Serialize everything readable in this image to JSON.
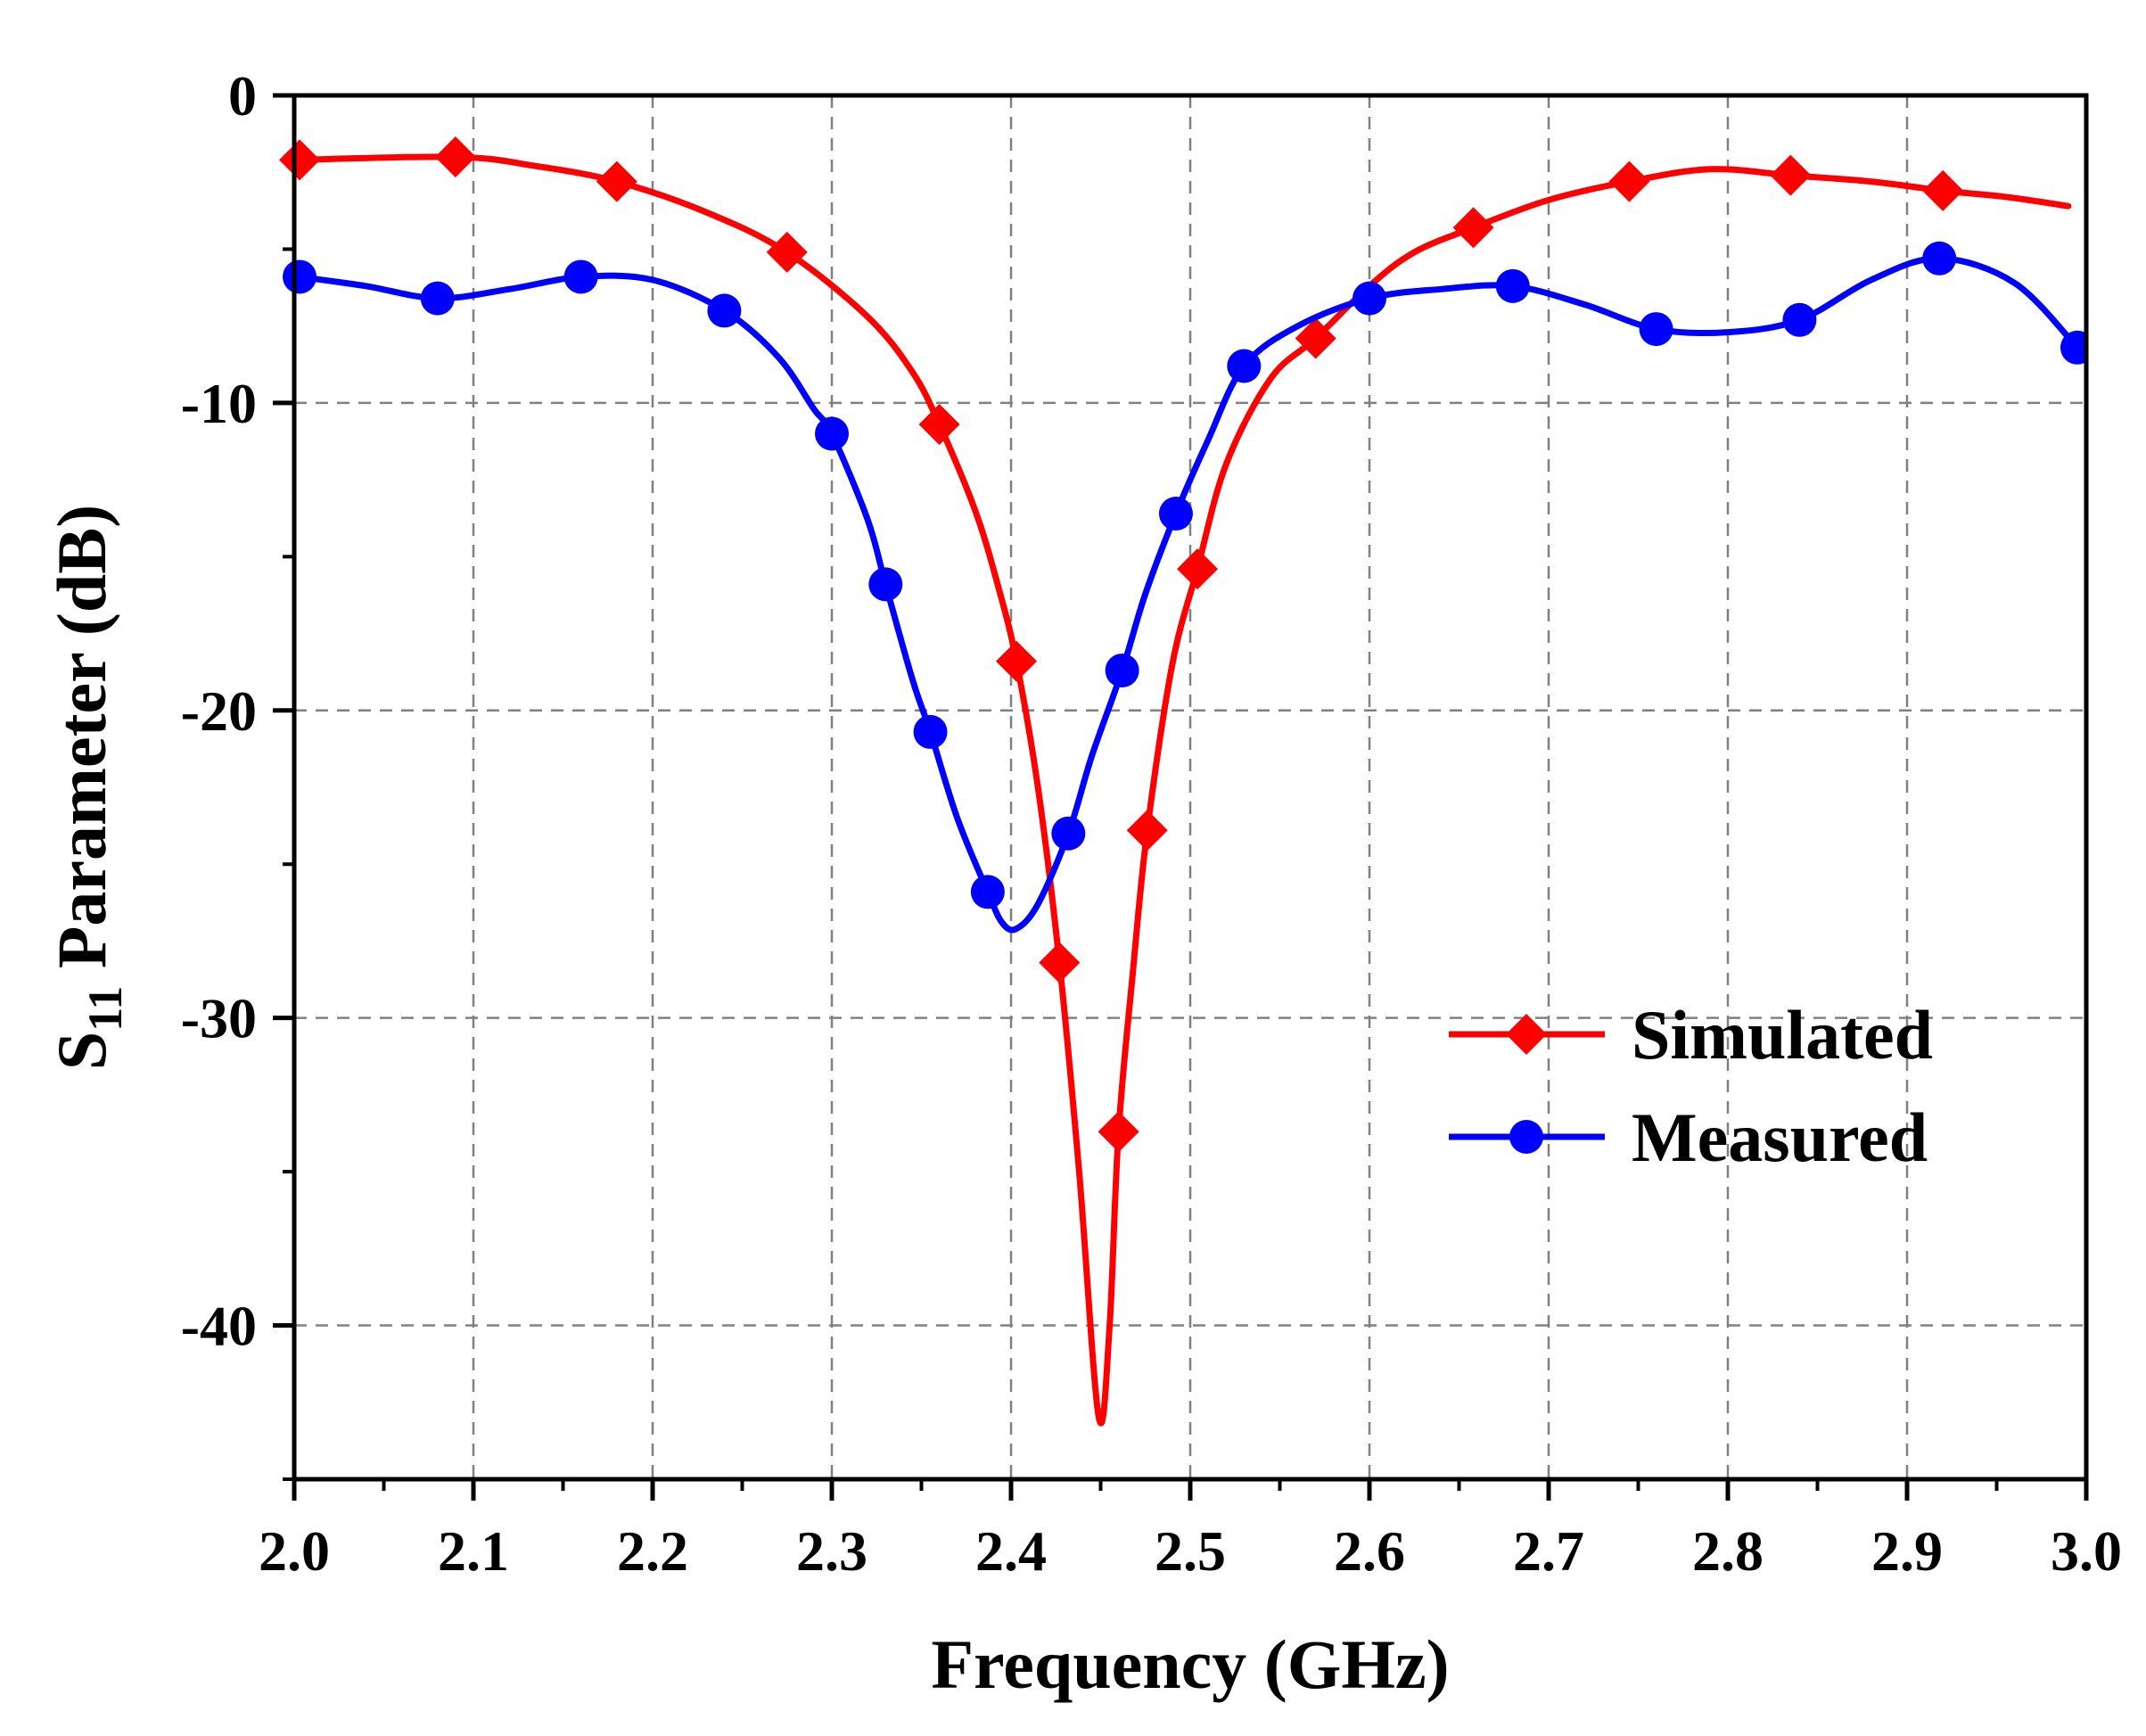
{
  "chart_data": {
    "type": "line",
    "title": "",
    "xlabel": "Frequency (GHz)",
    "ylabel": {
      "main": "S",
      "subscript": "11",
      "rest": " Parameter (dB)"
    },
    "xlim": [
      2.0,
      3.0
    ],
    "ylim": [
      -45,
      0
    ],
    "x_ticks": [
      2.0,
      2.1,
      2.2,
      2.3,
      2.4,
      2.5,
      2.6,
      2.7,
      2.8,
      2.9,
      3.0
    ],
    "x_tick_labels": [
      "2.0",
      "2.1",
      "2.2",
      "2.3",
      "2.4",
      "2.5",
      "2.6",
      "2.7",
      "2.8",
      "2.9",
      "3.0"
    ],
    "y_ticks": [
      0,
      -10,
      -20,
      -30,
      -40
    ],
    "y_tick_labels": [
      "0",
      "-10",
      "-20",
      "-30",
      "-40"
    ],
    "grid": true,
    "legend_position": "lower-right",
    "series": [
      {
        "name": "Simulated",
        "color": "#ff0000",
        "marker": "diamond",
        "curve": [
          [
            2.0,
            -2.1
          ],
          [
            2.09,
            -2.0
          ],
          [
            2.135,
            -2.3
          ],
          [
            2.18,
            -2.8
          ],
          [
            2.23,
            -3.8
          ],
          [
            2.275,
            -5.1
          ],
          [
            2.32,
            -7.2
          ],
          [
            2.345,
            -9.0
          ],
          [
            2.36,
            -10.7
          ],
          [
            2.38,
            -13.5
          ],
          [
            2.393,
            -16.0
          ],
          [
            2.403,
            -18.4
          ],
          [
            2.415,
            -22.5
          ],
          [
            2.427,
            -28.2
          ],
          [
            2.438,
            -35.0
          ],
          [
            2.449,
            -43.0
          ],
          [
            2.455,
            -40.0
          ],
          [
            2.46,
            -33.7
          ],
          [
            2.468,
            -28.5
          ],
          [
            2.476,
            -23.9
          ],
          [
            2.49,
            -18.5
          ],
          [
            2.504,
            -15.4
          ],
          [
            2.52,
            -12.0
          ],
          [
            2.545,
            -9.2
          ],
          [
            2.57,
            -7.9
          ],
          [
            2.6,
            -6.2
          ],
          [
            2.625,
            -5.1
          ],
          [
            2.658,
            -4.3
          ],
          [
            2.7,
            -3.4
          ],
          [
            2.745,
            -2.8
          ],
          [
            2.79,
            -2.4
          ],
          [
            2.835,
            -2.6
          ],
          [
            2.88,
            -2.8
          ],
          [
            2.92,
            -3.1
          ],
          [
            2.955,
            -3.3
          ],
          [
            2.99,
            -3.6
          ]
        ],
        "markers": [
          [
            2.003,
            -2.1
          ],
          [
            2.09,
            -2.0
          ],
          [
            2.18,
            -2.8
          ],
          [
            2.275,
            -5.1
          ],
          [
            2.36,
            -10.7
          ],
          [
            2.403,
            -18.4
          ],
          [
            2.427,
            -28.2
          ],
          [
            2.46,
            -33.7
          ],
          [
            2.476,
            -23.9
          ],
          [
            2.504,
            -15.4
          ],
          [
            2.57,
            -7.9
          ],
          [
            2.658,
            -4.3
          ],
          [
            2.745,
            -2.8
          ],
          [
            2.835,
            -2.6
          ],
          [
            2.92,
            -3.1
          ]
        ]
      },
      {
        "name": "Measured",
        "color": "#0000ff",
        "marker": "circle",
        "curve": [
          [
            2.003,
            -5.9
          ],
          [
            2.04,
            -6.2
          ],
          [
            2.08,
            -6.6
          ],
          [
            2.12,
            -6.3
          ],
          [
            2.16,
            -5.9
          ],
          [
            2.2,
            -6.0
          ],
          [
            2.24,
            -7.0
          ],
          [
            2.27,
            -8.5
          ],
          [
            2.29,
            -10.2
          ],
          [
            2.3,
            -11.0
          ],
          [
            2.32,
            -13.8
          ],
          [
            2.33,
            -15.9
          ],
          [
            2.345,
            -19.0
          ],
          [
            2.355,
            -20.7
          ],
          [
            2.37,
            -23.5
          ],
          [
            2.387,
            -25.9
          ],
          [
            2.395,
            -26.9
          ],
          [
            2.403,
            -27.1
          ],
          [
            2.415,
            -26.3
          ],
          [
            2.432,
            -24.0
          ],
          [
            2.445,
            -21.5
          ],
          [
            2.462,
            -18.7
          ],
          [
            2.475,
            -16.2
          ],
          [
            2.492,
            -13.6
          ],
          [
            2.51,
            -11.2
          ],
          [
            2.53,
            -8.8
          ],
          [
            2.56,
            -7.5
          ],
          [
            2.6,
            -6.6
          ],
          [
            2.64,
            -6.3
          ],
          [
            2.68,
            -6.2
          ],
          [
            2.72,
            -6.8
          ],
          [
            2.76,
            -7.6
          ],
          [
            2.8,
            -7.7
          ],
          [
            2.84,
            -7.3
          ],
          [
            2.88,
            -6.0
          ],
          [
            2.918,
            -5.3
          ],
          [
            2.96,
            -6.1
          ],
          [
            2.995,
            -8.2
          ]
        ],
        "markers": [
          [
            2.003,
            -5.9
          ],
          [
            2.08,
            -6.6
          ],
          [
            2.16,
            -5.9
          ],
          [
            2.24,
            -7.0
          ],
          [
            2.3,
            -11.0
          ],
          [
            2.33,
            -15.9
          ],
          [
            2.355,
            -20.7
          ],
          [
            2.387,
            -25.9
          ],
          [
            2.432,
            -24.0
          ],
          [
            2.462,
            -18.7
          ],
          [
            2.492,
            -13.6
          ],
          [
            2.53,
            -8.8
          ],
          [
            2.6,
            -6.6
          ],
          [
            2.68,
            -6.2
          ],
          [
            2.76,
            -7.6
          ],
          [
            2.84,
            -7.3
          ],
          [
            2.918,
            -5.3
          ],
          [
            2.995,
            -8.2
          ]
        ]
      }
    ]
  }
}
